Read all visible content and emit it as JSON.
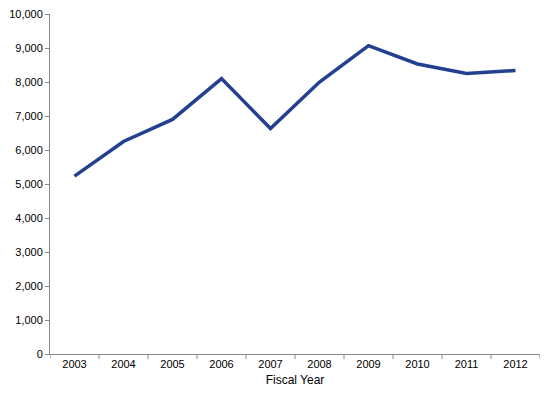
{
  "chart_data": {
    "type": "line",
    "x_label": "Fiscal Year",
    "categories": [
      "2003",
      "2004",
      "2005",
      "2006",
      "2007",
      "2008",
      "2009",
      "2010",
      "2011",
      "2012"
    ],
    "values": [
      5230,
      6250,
      6900,
      8100,
      6630,
      8000,
      9070,
      8530,
      8250,
      8340
    ],
    "color": "#233f8f",
    "ylim": [
      0,
      10000
    ],
    "yticks": [
      0,
      {
        "value": 1000,
        "label": "1,000"
      },
      {
        "value": 2000,
        "label": "2,000"
      },
      {
        "value": 3000,
        "label": "3,000"
      },
      {
        "value": 4000,
        "label": "4,000"
      },
      {
        "value": 5000,
        "label": "5,000"
      },
      {
        "value": 6000,
        "label": "6,000"
      },
      {
        "value": 7000,
        "label": "7,000"
      },
      {
        "value": 8000,
        "label": "8,000"
      },
      {
        "value": 9000,
        "label": "9,000"
      },
      {
        "value": 10000,
        "label": "10,000"
      }
    ],
    "grid": false
  }
}
